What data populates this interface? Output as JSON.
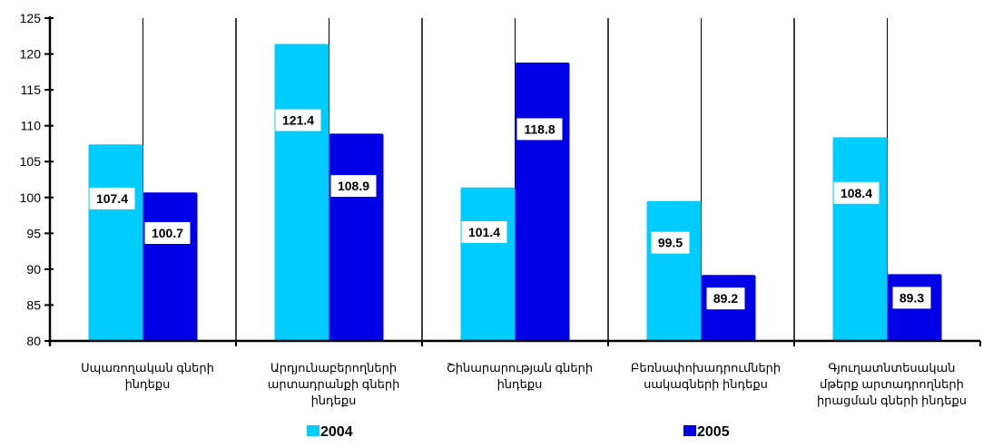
{
  "chart_data": {
    "type": "bar",
    "title": "",
    "xlabel": "",
    "ylabel": "",
    "ylim": [
      80,
      125
    ],
    "yticks": [
      80,
      85,
      90,
      95,
      100,
      105,
      110,
      115,
      120,
      125
    ],
    "grid": "vertical category separators",
    "legend": "bottom",
    "categories": [
      [
        "Սպառողական գների",
        "ինդեքս"
      ],
      [
        "Արդյունաբերողների",
        "արտադրանքի գների",
        "ինդեքս"
      ],
      [
        "Շինարարության գների",
        "ինդեքս"
      ],
      [
        "Բեռնափոխադրումների",
        "սակագների ինդեքս"
      ],
      [
        "Գյուղատնտեսական",
        "մթերք արտադրողների",
        "իրացման գների ինդեքս"
      ]
    ],
    "series": [
      {
        "name": "2004",
        "color": "#00ccff",
        "values": [
          107.4,
          121.4,
          101.4,
          99.5,
          108.4
        ],
        "labels": [
          "107.4",
          "121.4",
          "101.4",
          "99.5",
          "108.4"
        ]
      },
      {
        "name": "2005",
        "color": "#0000e6",
        "values": [
          100.7,
          108.9,
          118.8,
          89.2,
          89.3
        ],
        "labels": [
          "100.7",
          "108.9",
          "118.8",
          "89.2",
          "89.3"
        ]
      }
    ]
  }
}
